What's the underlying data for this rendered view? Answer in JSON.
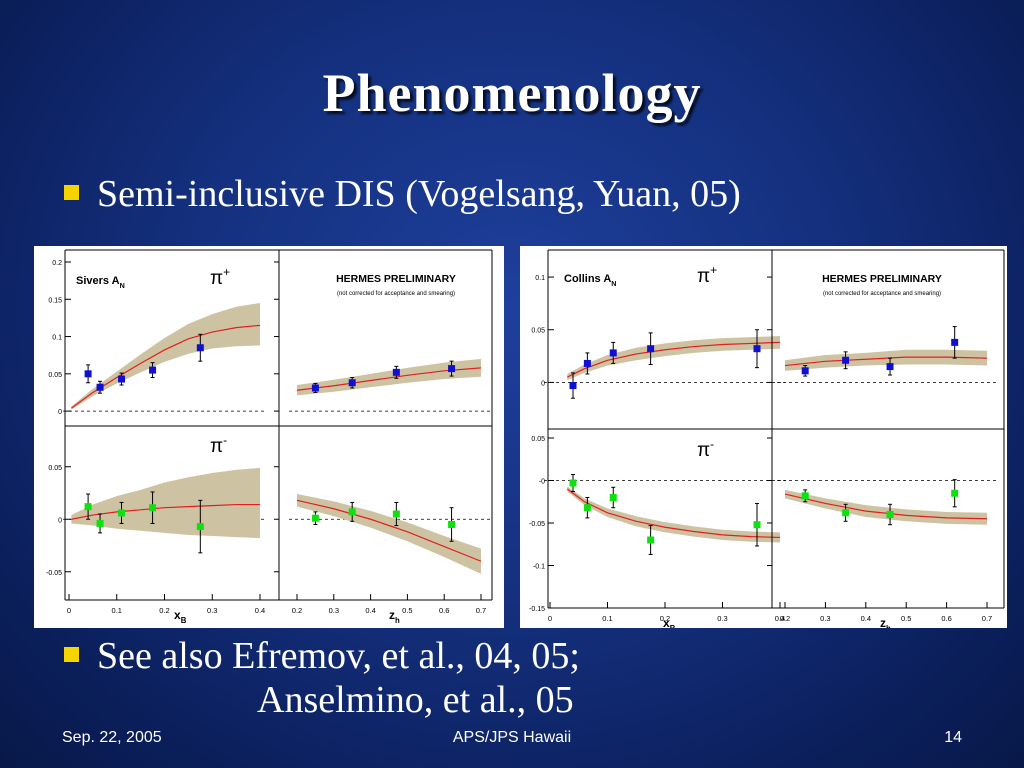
{
  "slide": {
    "title": "Phenomenology",
    "bullet1": "Semi-inclusive DIS (Vogelsang, Yuan, 05)",
    "bullet2_line1": "See also Efremov, et al., 04, 05;",
    "bullet2_line2": "Anselmino, et al., 05",
    "footer_date": "Sep. 22, 2005",
    "footer_center": "APS/JPS Hawaii",
    "footer_page": "14"
  },
  "colors": {
    "background": "#14307e",
    "bullet_square": "#f5d400",
    "band": "#cdc3a2",
    "curve": "#e02020",
    "pi_plus_points": "#1010d0",
    "pi_minus_points": "#10e010"
  },
  "chart_data": [
    {
      "type": "scatter",
      "panel": "Sivers",
      "label": "Sivers A",
      "label_sub": "N",
      "hermes": "HERMES PRELIMINARY",
      "hermes_note": "(not corrected for acceptance and smearing)",
      "x_label": "x",
      "x_label_sub": "B",
      "z_label": "z",
      "z_label_sub": "h",
      "x_ticks": [
        "0",
        "0.1",
        "0.2",
        "0.3",
        "0.4"
      ],
      "z_ticks": [
        "0.2",
        "0.3",
        "0.4",
        "0.5",
        "0.6",
        "0.7"
      ],
      "top": {
        "pion": "π+",
        "ylim": [
          -0.02,
          0.2
        ],
        "y_ticks": [
          0,
          0.05,
          0.1,
          0.15,
          0.2
        ],
        "y_tick_labels": [
          "0",
          "0.05",
          "0.1",
          "0.15",
          "0.2"
        ],
        "x_points": [
          [
            0.04,
            0.05,
            0.012
          ],
          [
            0.065,
            0.032,
            0.008
          ],
          [
            0.11,
            0.043,
            0.008
          ],
          [
            0.175,
            0.055,
            0.01
          ],
          [
            0.275,
            0.085,
            0.018
          ]
        ],
        "x_curve": [
          [
            0.005,
            0.004
          ],
          [
            0.05,
            0.025
          ],
          [
            0.1,
            0.045
          ],
          [
            0.15,
            0.064
          ],
          [
            0.2,
            0.082
          ],
          [
            0.25,
            0.097
          ],
          [
            0.3,
            0.106
          ],
          [
            0.35,
            0.112
          ],
          [
            0.4,
            0.115
          ]
        ],
        "x_band": [
          [
            0.005,
            0.002,
            0.006
          ],
          [
            0.05,
            0.02,
            0.03
          ],
          [
            0.1,
            0.037,
            0.053
          ],
          [
            0.15,
            0.052,
            0.076
          ],
          [
            0.2,
            0.066,
            0.098
          ],
          [
            0.25,
            0.077,
            0.117
          ],
          [
            0.3,
            0.084,
            0.13
          ],
          [
            0.35,
            0.087,
            0.14
          ],
          [
            0.4,
            0.088,
            0.145
          ]
        ],
        "z_points": [
          [
            0.25,
            0.031,
            0.006
          ],
          [
            0.35,
            0.038,
            0.007
          ],
          [
            0.47,
            0.052,
            0.008
          ],
          [
            0.62,
            0.057,
            0.01
          ]
        ],
        "z_curve": [
          [
            0.2,
            0.028
          ],
          [
            0.3,
            0.034
          ],
          [
            0.4,
            0.041
          ],
          [
            0.5,
            0.048
          ],
          [
            0.6,
            0.054
          ],
          [
            0.7,
            0.058
          ]
        ],
        "z_band": [
          [
            0.2,
            0.021,
            0.035
          ],
          [
            0.3,
            0.026,
            0.042
          ],
          [
            0.4,
            0.032,
            0.05
          ],
          [
            0.5,
            0.038,
            0.058
          ],
          [
            0.6,
            0.043,
            0.065
          ],
          [
            0.7,
            0.046,
            0.07
          ]
        ]
      },
      "bottom": {
        "pion": "π-",
        "ylim": [
          -0.075,
          0.085
        ],
        "y_ticks": [
          -0.05,
          0,
          0.05
        ],
        "y_tick_labels": [
          "-0.05",
          "0",
          "0.05"
        ],
        "x_points": [
          [
            0.04,
            0.012,
            0.012
          ],
          [
            0.065,
            -0.004,
            0.009
          ],
          [
            0.11,
            0.006,
            0.01
          ],
          [
            0.175,
            0.011,
            0.015
          ],
          [
            0.275,
            -0.007,
            0.025
          ]
        ],
        "x_curve": [
          [
            0.005,
            0.0
          ],
          [
            0.05,
            0.004
          ],
          [
            0.1,
            0.007
          ],
          [
            0.15,
            0.009
          ],
          [
            0.2,
            0.011
          ],
          [
            0.25,
            0.012
          ],
          [
            0.3,
            0.013
          ],
          [
            0.35,
            0.014
          ],
          [
            0.4,
            0.014
          ]
        ],
        "x_band": [
          [
            0.005,
            -0.004,
            0.004
          ],
          [
            0.05,
            -0.006,
            0.014
          ],
          [
            0.1,
            -0.009,
            0.022
          ],
          [
            0.15,
            -0.011,
            0.028
          ],
          [
            0.2,
            -0.013,
            0.035
          ],
          [
            0.25,
            -0.015,
            0.04
          ],
          [
            0.3,
            -0.016,
            0.044
          ],
          [
            0.35,
            -0.017,
            0.047
          ],
          [
            0.4,
            -0.018,
            0.049
          ]
        ],
        "z_points": [
          [
            0.25,
            0.001,
            0.006
          ],
          [
            0.35,
            0.007,
            0.009
          ],
          [
            0.47,
            0.005,
            0.011
          ],
          [
            0.62,
            -0.005,
            0.016
          ]
        ],
        "z_curve": [
          [
            0.2,
            0.018
          ],
          [
            0.3,
            0.01
          ],
          [
            0.4,
            0.0
          ],
          [
            0.5,
            -0.012
          ],
          [
            0.6,
            -0.026
          ],
          [
            0.7,
            -0.04
          ]
        ],
        "z_band": [
          [
            0.2,
            0.012,
            0.024
          ],
          [
            0.3,
            0.003,
            0.017
          ],
          [
            0.4,
            -0.008,
            0.008
          ],
          [
            0.5,
            -0.021,
            -0.003
          ],
          [
            0.6,
            -0.036,
            -0.016
          ],
          [
            0.7,
            -0.052,
            -0.028
          ]
        ]
      }
    },
    {
      "type": "scatter",
      "panel": "Collins",
      "label": "Collins A",
      "label_sub": "N",
      "hermes": "HERMES PRELIMINARY",
      "hermes_note": "(not corrected for acceptance and smearing)",
      "x_label": "x",
      "x_label_sub": "B",
      "z_label": "z",
      "z_label_sub": "h",
      "x_ticks": [
        "0",
        "0.1",
        "0.2",
        "0.3",
        "0.4"
      ],
      "z_ticks": [
        "0.2",
        "0.3",
        "0.4",
        "0.5",
        "0.6",
        "0.7"
      ],
      "top": {
        "pion": "π+",
        "ylim": [
          -0.03,
          0.12
        ],
        "y_ticks": [
          0,
          0.05,
          0.1
        ],
        "y_tick_labels": [
          "0",
          "0.05",
          "0.1"
        ],
        "x_points": [
          [
            0.04,
            -0.003,
            0.012
          ],
          [
            0.065,
            0.018,
            0.01
          ],
          [
            0.11,
            0.028,
            0.01
          ],
          [
            0.175,
            0.032,
            0.015
          ],
          [
            0.36,
            0.032,
            0.018
          ]
        ],
        "x_curve": [
          [
            0.03,
            0.005
          ],
          [
            0.06,
            0.013
          ],
          [
            0.1,
            0.021
          ],
          [
            0.15,
            0.027
          ],
          [
            0.2,
            0.031
          ],
          [
            0.25,
            0.034
          ],
          [
            0.3,
            0.036
          ],
          [
            0.35,
            0.037
          ],
          [
            0.4,
            0.038
          ]
        ],
        "x_band": [
          [
            0.03,
            0.002,
            0.008
          ],
          [
            0.06,
            0.009,
            0.017
          ],
          [
            0.1,
            0.016,
            0.026
          ],
          [
            0.15,
            0.021,
            0.033
          ],
          [
            0.2,
            0.025,
            0.037
          ],
          [
            0.25,
            0.028,
            0.04
          ],
          [
            0.3,
            0.03,
            0.042
          ],
          [
            0.35,
            0.031,
            0.043
          ],
          [
            0.4,
            0.032,
            0.044
          ]
        ],
        "z_points": [
          [
            0.25,
            0.011,
            0.005
          ],
          [
            0.35,
            0.021,
            0.008
          ],
          [
            0.46,
            0.015,
            0.008
          ],
          [
            0.62,
            0.038,
            0.015
          ]
        ],
        "z_curve": [
          [
            0.2,
            0.016
          ],
          [
            0.3,
            0.02
          ],
          [
            0.4,
            0.022
          ],
          [
            0.5,
            0.024
          ],
          [
            0.6,
            0.024
          ],
          [
            0.7,
            0.023
          ]
        ],
        "z_band": [
          [
            0.2,
            0.011,
            0.021
          ],
          [
            0.3,
            0.014,
            0.026
          ],
          [
            0.4,
            0.016,
            0.028
          ],
          [
            0.5,
            0.017,
            0.031
          ],
          [
            0.6,
            0.017,
            0.031
          ],
          [
            0.7,
            0.016,
            0.03
          ]
        ]
      },
      "bottom": {
        "pion": "π-",
        "ylim": [
          -0.15,
          0.05
        ],
        "y_ticks": [
          -0.15,
          -0.1,
          -0.05,
          0,
          0.05
        ],
        "y_tick_labels": [
          "-0.15",
          "-0.1",
          "-0.05",
          "-0",
          "0.05"
        ],
        "x_points": [
          [
            0.04,
            -0.003,
            0.01
          ],
          [
            0.065,
            -0.032,
            0.012
          ],
          [
            0.11,
            -0.02,
            0.012
          ],
          [
            0.175,
            -0.07,
            0.017
          ],
          [
            0.36,
            -0.052,
            0.025
          ]
        ],
        "x_curve": [
          [
            0.03,
            -0.01
          ],
          [
            0.06,
            -0.025
          ],
          [
            0.1,
            -0.038
          ],
          [
            0.15,
            -0.048
          ],
          [
            0.2,
            -0.055
          ],
          [
            0.25,
            -0.06
          ],
          [
            0.3,
            -0.064
          ],
          [
            0.35,
            -0.066
          ],
          [
            0.4,
            -0.067
          ]
        ],
        "x_band": [
          [
            0.03,
            -0.013,
            -0.007
          ],
          [
            0.06,
            -0.029,
            -0.021
          ],
          [
            0.1,
            -0.043,
            -0.033
          ],
          [
            0.15,
            -0.054,
            -0.042
          ],
          [
            0.2,
            -0.061,
            -0.049
          ],
          [
            0.25,
            -0.066,
            -0.054
          ],
          [
            0.3,
            -0.07,
            -0.058
          ],
          [
            0.35,
            -0.072,
            -0.06
          ],
          [
            0.4,
            -0.073,
            -0.061
          ]
        ],
        "z_points": [
          [
            0.25,
            -0.018,
            0.007
          ],
          [
            0.35,
            -0.038,
            0.01
          ],
          [
            0.46,
            -0.04,
            0.012
          ],
          [
            0.62,
            -0.015,
            0.016
          ]
        ],
        "z_curve": [
          [
            0.2,
            -0.016
          ],
          [
            0.3,
            -0.027
          ],
          [
            0.4,
            -0.036
          ],
          [
            0.5,
            -0.041
          ],
          [
            0.6,
            -0.044
          ],
          [
            0.7,
            -0.045
          ]
        ],
        "z_band": [
          [
            0.2,
            -0.021,
            -0.011
          ],
          [
            0.3,
            -0.033,
            -0.021
          ],
          [
            0.4,
            -0.043,
            -0.029
          ],
          [
            0.5,
            -0.048,
            -0.034
          ],
          [
            0.6,
            -0.051,
            -0.037
          ],
          [
            0.7,
            -0.052,
            -0.038
          ]
        ]
      }
    }
  ]
}
